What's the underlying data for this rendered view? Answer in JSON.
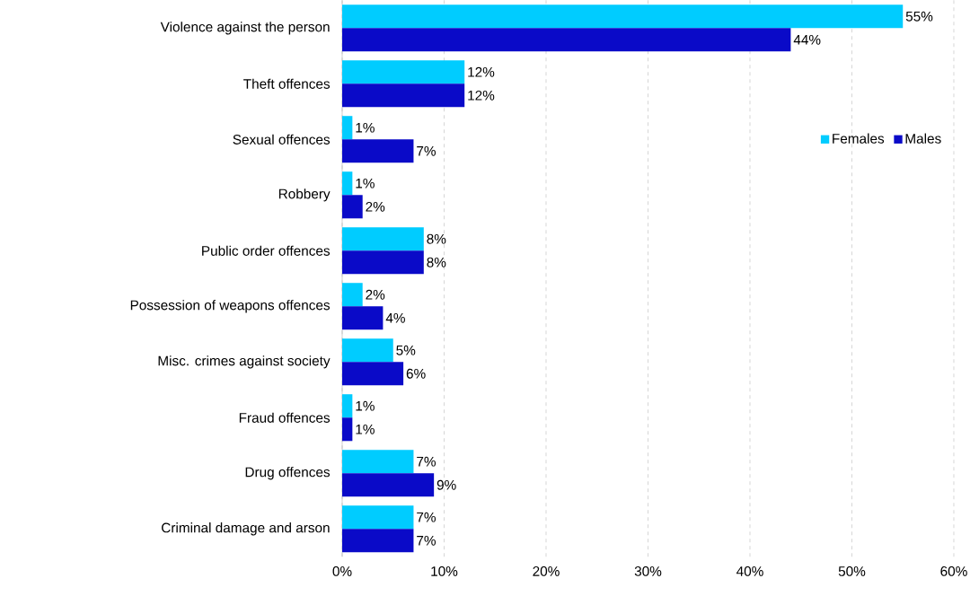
{
  "chart_data": {
    "type": "bar",
    "orientation": "horizontal",
    "categories": [
      "Violence against the person",
      "Theft offences",
      "Sexual offences",
      "Robbery",
      "Public order offences",
      "Possession of weapons offences",
      "Misc. crimes against society",
      "Fraud offences",
      "Drug offences",
      "Criminal damage and arson"
    ],
    "series": [
      {
        "name": "Females",
        "color": "#00ccff",
        "values": [
          55,
          12,
          1,
          1,
          8,
          2,
          5,
          1,
          7,
          7
        ],
        "value_labels": [
          "55%",
          "12%",
          "1%",
          "1%",
          "8%",
          "2%",
          "5%",
          "1%",
          "7%",
          "7%"
        ]
      },
      {
        "name": "Males",
        "color": "#0a0ac8",
        "values": [
          44,
          12,
          7,
          2,
          8,
          4,
          6,
          1,
          9,
          7
        ],
        "value_labels": [
          "44%",
          "12%",
          "7%",
          "2%",
          "8%",
          "4%",
          "6%",
          "1%",
          "9%",
          "7%"
        ]
      }
    ],
    "xlim": [
      0,
      60
    ],
    "xticks": [
      {
        "value": 0,
        "label": "0%"
      },
      {
        "value": 10,
        "label": "10%"
      },
      {
        "value": 20,
        "label": "20%"
      },
      {
        "value": 30,
        "label": "30%"
      },
      {
        "value": 40,
        "label": "40%"
      },
      {
        "value": 50,
        "label": "50%"
      },
      {
        "value": 60,
        "label": "60%"
      }
    ],
    "grid": "x",
    "legend": "right"
  }
}
